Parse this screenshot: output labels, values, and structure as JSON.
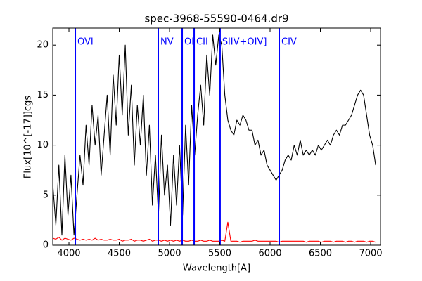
{
  "chart_data": {
    "type": "line",
    "title": "spec-3968-55590-0464.dr9",
    "x_label": "Wavelength[A]",
    "y_label": "Flux[10^[-17]]cgs",
    "x": [
      3840,
      3870,
      3900,
      3930,
      3960,
      3990,
      4020,
      4050,
      4080,
      4110,
      4140,
      4170,
      4200,
      4230,
      4260,
      4290,
      4320,
      4350,
      4380,
      4410,
      4440,
      4470,
      4500,
      4530,
      4560,
      4590,
      4620,
      4650,
      4680,
      4710,
      4740,
      4770,
      4800,
      4830,
      4860,
      4890,
      4920,
      4950,
      4980,
      5010,
      5040,
      5070,
      5100,
      5130,
      5160,
      5190,
      5220,
      5250,
      5280,
      5310,
      5340,
      5370,
      5400,
      5430,
      5460,
      5490,
      5520,
      5550,
      5580,
      5610,
      5640,
      5670,
      5700,
      5730,
      5760,
      5790,
      5820,
      5850,
      5880,
      5910,
      5940,
      5970,
      6000,
      6030,
      6060,
      6090,
      6120,
      6150,
      6180,
      6210,
      6240,
      6270,
      6300,
      6330,
      6360,
      6390,
      6420,
      6450,
      6480,
      6510,
      6540,
      6570,
      6600,
      6630,
      6660,
      6690,
      6720,
      6750,
      6780,
      6810,
      6840,
      6870,
      6900,
      6930,
      6960,
      6990,
      7020,
      7050
    ],
    "series": [
      {
        "color": "#000000",
        "values": [
          6,
          2,
          8,
          1,
          9,
          3,
          7,
          1,
          5,
          9,
          6,
          12,
          8,
          14,
          10,
          13,
          7,
          11,
          15,
          9,
          17,
          12,
          19,
          13,
          20,
          11,
          16,
          8,
          14,
          10,
          15,
          7,
          12,
          4,
          9,
          3,
          11,
          5,
          8,
          2,
          9,
          4,
          10,
          3,
          12,
          6,
          14,
          9,
          13,
          16,
          12,
          19,
          15,
          21,
          18,
          21,
          20,
          15,
          12.5,
          11.5,
          11,
          12.5,
          12,
          13,
          12.5,
          11.5,
          11.5,
          10,
          10.5,
          9,
          9.5,
          8,
          7.5,
          7,
          6.5,
          7,
          7.5,
          8.5,
          9,
          8.5,
          10,
          9,
          10.5,
          9,
          9.5,
          9,
          9.5,
          9,
          10,
          9.5,
          10,
          10.5,
          10,
          11,
          11.5,
          11,
          12,
          12,
          12.5,
          13,
          14,
          15,
          15.5,
          15,
          13,
          11,
          10,
          8
        ]
      },
      {
        "color": "#ff0000",
        "values": [
          0.7,
          0.6,
          0.8,
          0.5,
          0.7,
          0.6,
          0.5,
          0.7,
          0.6,
          0.5,
          0.6,
          0.5,
          0.6,
          0.5,
          0.7,
          0.5,
          0.6,
          0.5,
          0.5,
          0.6,
          0.5,
          0.5,
          0.6,
          0.4,
          0.5,
          0.5,
          0.6,
          0.4,
          0.5,
          0.5,
          0.4,
          0.5,
          0.6,
          0.4,
          0.5,
          0.5,
          0.4,
          0.5,
          0.4,
          0.5,
          0.4,
          0.5,
          0.4,
          0.5,
          0.4,
          0.4,
          0.5,
          0.4,
          0.4,
          0.5,
          0.4,
          0.4,
          0.5,
          0.4,
          0.4,
          0.4,
          0.5,
          0.4,
          2.3,
          0.4,
          0.4,
          0.4,
          0.3,
          0.4,
          0.4,
          0.4,
          0.4,
          0.5,
          0.4,
          0.4,
          0.4,
          0.4,
          0.4,
          0.4,
          0.4,
          0.3,
          0.4,
          0.4,
          0.4,
          0.4,
          0.4,
          0.4,
          0.4,
          0.4,
          0.3,
          0.4,
          0.4,
          0.4,
          0.4,
          0.3,
          0.4,
          0.4,
          0.4,
          0.3,
          0.4,
          0.4,
          0.4,
          0.3,
          0.4,
          0.4,
          0.3,
          0.4,
          0.4,
          0.4,
          0.3,
          0.4,
          0.4,
          0.3
        ]
      }
    ],
    "lines": [
      {
        "label": "OVI",
        "x": 4063
      },
      {
        "label": "NV",
        "x": 4888
      },
      {
        "label": "OI",
        "x": 5126
      },
      {
        "label": "CII",
        "x": 5245
      },
      {
        "label": "SiIV+OIV]",
        "x": 5503
      },
      {
        "label": "CIV",
        "x": 6091
      }
    ],
    "line_color": "#0000ff",
    "xlim": [
      3839,
      7098
    ],
    "ylim": [
      0,
      21.7
    ],
    "xticks": [
      4000,
      4500,
      5000,
      5500,
      6000,
      6500,
      7000
    ],
    "yticks": [
      0,
      5,
      10,
      15,
      20
    ]
  }
}
